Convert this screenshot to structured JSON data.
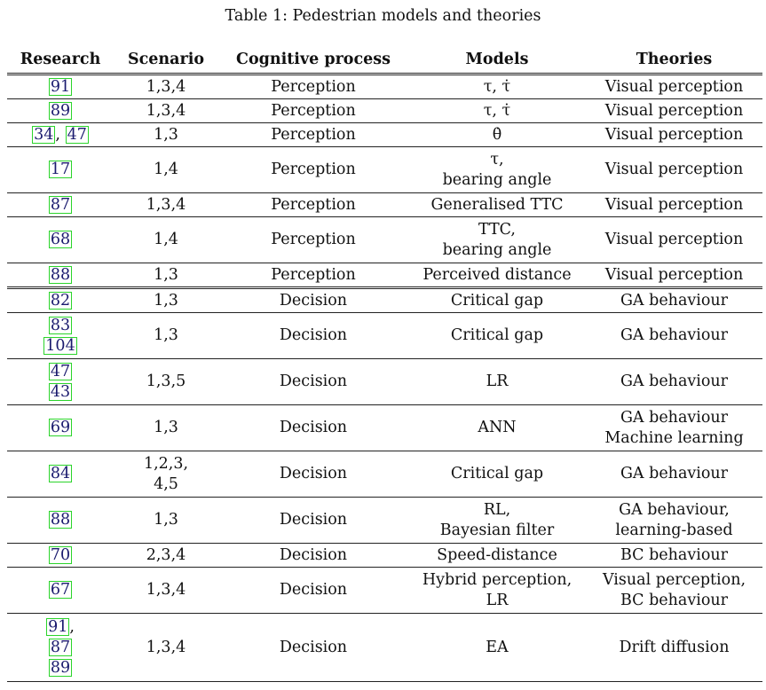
{
  "caption": "Table 1: Pedestrian models and theories",
  "headers": [
    "Research",
    "Scenario",
    "Cognitive process",
    "Models",
    "Theories"
  ],
  "rows": [
    {
      "refs": [
        [
          "91"
        ]
      ],
      "scenario": [
        "1,3,4"
      ],
      "process": "Perception",
      "models": [
        "τ, τ̇"
      ],
      "theories": [
        "Visual perception"
      ],
      "h": 1
    },
    {
      "refs": [
        [
          "89"
        ]
      ],
      "scenario": [
        "1,3,4"
      ],
      "process": "Perception",
      "models": [
        "τ, τ̇"
      ],
      "theories": [
        "Visual perception"
      ],
      "h": 1
    },
    {
      "refs": [
        [
          "34",
          "47"
        ]
      ],
      "scenario": [
        "1,3"
      ],
      "process": "Perception",
      "models": [
        "θ̇"
      ],
      "theories": [
        "Visual perception"
      ],
      "h": 1
    },
    {
      "refs": [
        [
          "17"
        ]
      ],
      "scenario": [
        "1,4"
      ],
      "process": "Perception",
      "models": [
        "τ,",
        "bearing angle"
      ],
      "theories": [
        "Visual perception"
      ],
      "h": 2
    },
    {
      "refs": [
        [
          "87"
        ]
      ],
      "scenario": [
        "1,3,4"
      ],
      "process": "Perception",
      "models": [
        "Generalised TTC"
      ],
      "theories": [
        "Visual perception"
      ],
      "h": 1
    },
    {
      "refs": [
        [
          "68"
        ]
      ],
      "scenario": [
        "1,4"
      ],
      "process": "Perception",
      "models": [
        "TTC,",
        "bearing angle"
      ],
      "theories": [
        "Visual perception"
      ],
      "h": 2
    },
    {
      "refs": [
        [
          "88"
        ]
      ],
      "scenario": [
        "1,3"
      ],
      "process": "Perception",
      "models": [
        "Perceived distance"
      ],
      "theories": [
        "Visual perception"
      ],
      "h": 1
    },
    {
      "refs": [
        [
          "82"
        ]
      ],
      "scenario": [
        "1,3"
      ],
      "process": "Decision",
      "models": [
        "Critical gap"
      ],
      "theories": [
        "GA behaviour"
      ],
      "h": 1
    },
    {
      "refs": [
        [
          "83"
        ],
        [
          "104"
        ]
      ],
      "scenario": [
        "1,3"
      ],
      "process": "Decision",
      "models": [
        "Critical gap"
      ],
      "theories": [
        "GA behaviour"
      ],
      "h": 2
    },
    {
      "refs": [
        [
          "47"
        ],
        [
          "43"
        ]
      ],
      "scenario": [
        "1,3,5"
      ],
      "process": "Decision",
      "models": [
        "LR"
      ],
      "theories": [
        "GA behaviour"
      ],
      "h": 2
    },
    {
      "refs": [
        [
          "69"
        ]
      ],
      "scenario": [
        "1,3"
      ],
      "process": "Decision",
      "models": [
        "ANN"
      ],
      "theories": [
        "GA behaviour",
        "Machine learning"
      ],
      "h": 2
    },
    {
      "refs": [
        [
          "84"
        ]
      ],
      "scenario": [
        "1,2,3,",
        "4,5"
      ],
      "process": "Decision",
      "models": [
        "Critical gap"
      ],
      "theories": [
        "GA behaviour"
      ],
      "h": 2
    },
    {
      "refs": [
        [
          "88"
        ]
      ],
      "scenario": [
        "1,3"
      ],
      "process": "Decision",
      "models": [
        "RL,",
        "Bayesian filter"
      ],
      "theories": [
        "GA behaviour,",
        "learning-based"
      ],
      "h": 2
    },
    {
      "refs": [
        [
          "70"
        ]
      ],
      "scenario": [
        "2,3,4"
      ],
      "process": "Decision",
      "models": [
        "Speed-distance"
      ],
      "theories": [
        "BC behaviour"
      ],
      "h": 1
    },
    {
      "refs": [
        [
          "67"
        ]
      ],
      "scenario": [
        "1,3,4"
      ],
      "process": "Decision",
      "models": [
        "Hybrid perception,",
        "LR"
      ],
      "theories": [
        "Visual perception,",
        "BC behaviour"
      ],
      "h": 2
    },
    {
      "refs": [
        [
          "91",
          ","
        ],
        [
          "87"
        ],
        [
          "89"
        ]
      ],
      "scenario": [
        "1,3,4"
      ],
      "process": "Decision",
      "models": [
        "EA"
      ],
      "theories": [
        "Drift diffusion"
      ],
      "h": 3
    }
  ]
}
